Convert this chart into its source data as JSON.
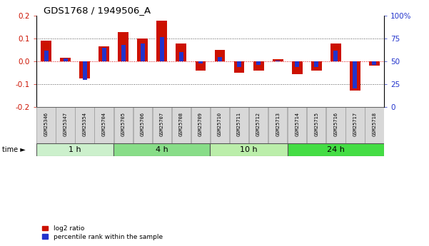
{
  "title": "GDS1768 / 1949506_A",
  "samples": [
    "GSM25346",
    "GSM25347",
    "GSM25354",
    "GSM25704",
    "GSM25705",
    "GSM25706",
    "GSM25707",
    "GSM25708",
    "GSM25709",
    "GSM25710",
    "GSM25711",
    "GSM25712",
    "GSM25713",
    "GSM25714",
    "GSM25715",
    "GSM25716",
    "GSM25717",
    "GSM25718"
  ],
  "log2_ratio": [
    0.09,
    0.015,
    -0.075,
    0.065,
    0.13,
    0.1,
    0.18,
    0.08,
    -0.04,
    0.05,
    -0.05,
    -0.04,
    0.01,
    -0.055,
    -0.04,
    0.08,
    -0.13,
    -0.02
  ],
  "percentile": [
    62,
    53,
    30,
    65,
    68,
    70,
    77,
    60,
    48,
    55,
    44,
    46,
    51,
    44,
    44,
    62,
    20,
    46
  ],
  "groups": [
    {
      "label": "1 h",
      "start": 0,
      "end": 3,
      "color": "#ccf0cc"
    },
    {
      "label": "4 h",
      "start": 4,
      "end": 8,
      "color": "#88dd88"
    },
    {
      "label": "10 h",
      "start": 9,
      "end": 12,
      "color": "#bbeeaa"
    },
    {
      "label": "24 h",
      "start": 13,
      "end": 17,
      "color": "#44dd44"
    }
  ],
  "ylim_left": [
    -0.2,
    0.2
  ],
  "ylim_right": [
    0,
    100
  ],
  "bar_color_red": "#cc1100",
  "bar_color_blue": "#2233cc",
  "dotted_line_color": "#555555",
  "zero_line_color": "#dd0000",
  "background_color": "#ffffff",
  "tick_label_color_left": "#cc1100",
  "tick_label_color_right": "#2233cc",
  "left_ticks": [
    -0.2,
    -0.1,
    0.0,
    0.1,
    0.2
  ],
  "right_ticks": [
    0,
    25,
    50,
    75,
    100
  ],
  "legend_labels": [
    "log2 ratio",
    "percentile rank within the sample"
  ]
}
